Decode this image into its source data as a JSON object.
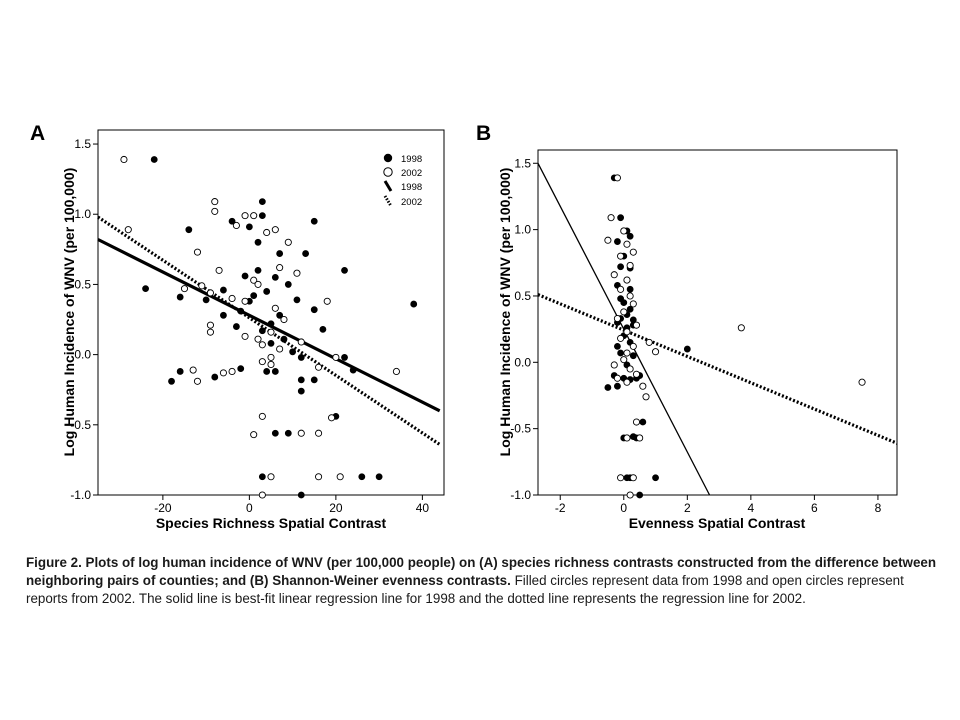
{
  "figure": {
    "caption_bold": "Figure 2. Plots of log human incidence of WNV (per 100,000 people) on (A) species richness contrasts constructed from the difference between neighboring pairs of counties; and (B) Shannon-Weiner evenness contrasts.",
    "caption_rest": " Filled circles represent data from 1998 and open circles represent reports from 2002. The solid line is best-fit linear regression line for 1998 and the dotted line represents the regression line for 2002."
  },
  "chart_data": [
    {
      "panel": "A",
      "type": "scatter",
      "xlabel": "Species Richness Spatial Contrast",
      "ylabel": "Log Human Incidence of WNV (per 100,000)",
      "xlim": [
        -35,
        45
      ],
      "ylim": [
        -1.0,
        1.6
      ],
      "xticks": [
        -20,
        0,
        20,
        40
      ],
      "yticks": [
        -1.0,
        -0.5,
        0.0,
        0.5,
        1.0,
        1.5
      ],
      "ytick_labels": [
        "-1.0",
        "-0.5",
        "0.0",
        "0.5",
        "1.0",
        "1.5"
      ],
      "legend": {
        "position": "top-right",
        "entries": [
          {
            "label": "1998",
            "symbol": "filled-circle"
          },
          {
            "label": "2002",
            "symbol": "open-circle"
          },
          {
            "label": "1998",
            "symbol": "solid-line"
          },
          {
            "label": "2002",
            "symbol": "dotted-line"
          }
        ]
      },
      "lines": [
        {
          "name": "1998",
          "style": "solid",
          "x": [
            -35,
            44
          ],
          "y": [
            0.82,
            -0.4
          ]
        },
        {
          "name": "2002",
          "style": "dotted",
          "x": [
            -35,
            44
          ],
          "y": [
            0.98,
            -0.64
          ]
        }
      ],
      "series": [
        {
          "name": "1998",
          "marker": "filled",
          "points": [
            [
              -22,
              1.39
            ],
            [
              -14,
              0.89
            ],
            [
              -4,
              0.95
            ],
            [
              0,
              0.91
            ],
            [
              3,
              1.09
            ],
            [
              3,
              0.99
            ],
            [
              15,
              0.95
            ],
            [
              13,
              0.72
            ],
            [
              -16,
              0.41
            ],
            [
              -10,
              0.39
            ],
            [
              -24,
              0.47
            ],
            [
              -6,
              0.28
            ],
            [
              -2,
              0.31
            ],
            [
              1,
              0.42
            ],
            [
              4,
              0.45
            ],
            [
              6,
              0.55
            ],
            [
              2,
              0.6
            ],
            [
              9,
              0.5
            ],
            [
              -3,
              0.2
            ],
            [
              5,
              0.22
            ],
            [
              7,
              0.28
            ],
            [
              11,
              0.39
            ],
            [
              15,
              0.32
            ],
            [
              17,
              0.18
            ],
            [
              22,
              0.6
            ],
            [
              5,
              0.08
            ],
            [
              8,
              0.11
            ],
            [
              10,
              0.02
            ],
            [
              12,
              -0.02
            ],
            [
              -18,
              -0.19
            ],
            [
              -16,
              -0.12
            ],
            [
              -8,
              -0.16
            ],
            [
              -2,
              -0.1
            ],
            [
              4,
              -0.12
            ],
            [
              6,
              -0.12
            ],
            [
              12,
              -0.18
            ],
            [
              15,
              -0.18
            ],
            [
              22,
              -0.02
            ],
            [
              24,
              -0.11
            ],
            [
              12,
              -0.26
            ],
            [
              20,
              -0.44
            ],
            [
              38,
              0.36
            ],
            [
              6,
              -0.56
            ],
            [
              9,
              -0.56
            ],
            [
              3,
              -0.87
            ],
            [
              26,
              -0.87
            ],
            [
              30,
              -0.87
            ],
            [
              12,
              -1.0
            ],
            [
              0,
              0.38
            ],
            [
              -6,
              0.46
            ],
            [
              -1,
              0.56
            ],
            [
              2,
              0.8
            ],
            [
              3,
              0.17
            ],
            [
              7,
              0.72
            ]
          ]
        },
        {
          "name": "2002",
          "marker": "open",
          "points": [
            [
              -29,
              1.39
            ],
            [
              -28,
              0.89
            ],
            [
              -8,
              1.09
            ],
            [
              -8,
              1.02
            ],
            [
              -3,
              0.92
            ],
            [
              -1,
              0.99
            ],
            [
              1,
              0.99
            ],
            [
              4,
              0.87
            ],
            [
              6,
              0.89
            ],
            [
              -12,
              0.73
            ],
            [
              -7,
              0.6
            ],
            [
              -11,
              0.49
            ],
            [
              -15,
              0.47
            ],
            [
              -9,
              0.44
            ],
            [
              -4,
              0.4
            ],
            [
              -1,
              0.38
            ],
            [
              1,
              0.53
            ],
            [
              2,
              0.5
            ],
            [
              6,
              0.33
            ],
            [
              7,
              0.62
            ],
            [
              9,
              0.8
            ],
            [
              -9,
              0.21
            ],
            [
              -9,
              0.16
            ],
            [
              -1,
              0.13
            ],
            [
              2,
              0.11
            ],
            [
              5,
              0.16
            ],
            [
              3,
              0.07
            ],
            [
              5,
              -0.02
            ],
            [
              7,
              0.04
            ],
            [
              -13,
              -0.11
            ],
            [
              -12,
              -0.19
            ],
            [
              -6,
              -0.13
            ],
            [
              -4,
              -0.12
            ],
            [
              3,
              -0.05
            ],
            [
              5,
              -0.07
            ],
            [
              20,
              -0.02
            ],
            [
              16,
              -0.09
            ],
            [
              34,
              -0.12
            ],
            [
              8,
              0.25
            ],
            [
              3,
              -0.44
            ],
            [
              1,
              -0.57
            ],
            [
              12,
              -0.56
            ],
            [
              16,
              -0.56
            ],
            [
              19,
              -0.45
            ],
            [
              21,
              -0.87
            ],
            [
              16,
              -0.87
            ],
            [
              5,
              -0.87
            ],
            [
              3,
              -1.0
            ],
            [
              12,
              0.09
            ],
            [
              18,
              0.38
            ],
            [
              11,
              0.58
            ]
          ]
        }
      ]
    },
    {
      "panel": "B",
      "type": "scatter",
      "xlabel": "Evenness Spatial Contrast",
      "ylabel": "Log Human Incidence of WNV (per 100,000)",
      "xlim": [
        -2.7,
        8.6
      ],
      "ylim": [
        -1.0,
        1.6
      ],
      "xticks": [
        -2,
        0,
        2,
        4,
        6,
        8
      ],
      "yticks": [
        -1.0,
        -0.5,
        0.0,
        0.5,
        1.0,
        1.5
      ],
      "ytick_labels": [
        "-1.0",
        "-0.5",
        "0.0",
        "0.5",
        "1.0",
        "1.5"
      ],
      "lines": [
        {
          "name": "1998",
          "style": "solid",
          "x": [
            -2.7,
            2.7
          ],
          "y": [
            1.5,
            -1.0
          ]
        },
        {
          "name": "2002",
          "style": "dotted",
          "x": [
            -2.7,
            8.6
          ],
          "y": [
            0.51,
            -0.61
          ]
        }
      ],
      "series": [
        {
          "name": "1998",
          "marker": "filled",
          "points": [
            [
              -0.3,
              1.39
            ],
            [
              -0.1,
              1.09
            ],
            [
              0.1,
              0.99
            ],
            [
              -0.2,
              0.91
            ],
            [
              0.2,
              0.95
            ],
            [
              0.0,
              0.8
            ],
            [
              -0.1,
              0.72
            ],
            [
              0.1,
              0.62
            ],
            [
              0.2,
              0.55
            ],
            [
              -0.1,
              0.48
            ],
            [
              0.0,
              0.45
            ],
            [
              0.2,
              0.4
            ],
            [
              0.1,
              0.36
            ],
            [
              -0.2,
              0.3
            ],
            [
              0.3,
              0.32
            ],
            [
              0.1,
              0.26
            ],
            [
              0.0,
              0.2
            ],
            [
              -0.2,
              0.12
            ],
            [
              0.2,
              0.15
            ],
            [
              -0.1,
              0.07
            ],
            [
              0.3,
              0.05
            ],
            [
              0.1,
              -0.02
            ],
            [
              -0.3,
              -0.1
            ],
            [
              0.0,
              -0.12
            ],
            [
              0.2,
              -0.13
            ],
            [
              0.4,
              -0.12
            ],
            [
              -0.5,
              -0.19
            ],
            [
              -0.2,
              -0.18
            ],
            [
              0.5,
              -0.1
            ],
            [
              0.3,
              0.28
            ],
            [
              2.0,
              0.1
            ],
            [
              0.6,
              -0.45
            ],
            [
              0.3,
              -0.56
            ],
            [
              0.0,
              -0.57
            ],
            [
              0.4,
              -0.57
            ],
            [
              0.1,
              -0.87
            ],
            [
              0.2,
              -0.87
            ],
            [
              1.0,
              -0.87
            ],
            [
              0.5,
              -1.0
            ],
            [
              -0.1,
              0.33
            ],
            [
              0.2,
              0.71
            ],
            [
              -0.2,
              0.58
            ]
          ]
        },
        {
          "name": "2002",
          "marker": "open",
          "points": [
            [
              -0.2,
              1.39
            ],
            [
              -0.4,
              1.09
            ],
            [
              0.0,
              0.99
            ],
            [
              -0.5,
              0.92
            ],
            [
              0.1,
              0.89
            ],
            [
              -0.1,
              0.8
            ],
            [
              0.2,
              0.73
            ],
            [
              0.1,
              0.62
            ],
            [
              -0.1,
              0.55
            ],
            [
              0.2,
              0.5
            ],
            [
              0.3,
              0.44
            ],
            [
              0.0,
              0.38
            ],
            [
              -0.2,
              0.33
            ],
            [
              0.4,
              0.28
            ],
            [
              0.1,
              0.23
            ],
            [
              -0.1,
              0.18
            ],
            [
              0.3,
              0.12
            ],
            [
              0.1,
              0.07
            ],
            [
              0.0,
              0.02
            ],
            [
              -0.3,
              -0.02
            ],
            [
              0.2,
              -0.05
            ],
            [
              0.4,
              -0.09
            ],
            [
              -0.2,
              -0.12
            ],
            [
              0.1,
              -0.15
            ],
            [
              0.6,
              -0.18
            ],
            [
              0.7,
              -0.26
            ],
            [
              0.4,
              -0.45
            ],
            [
              0.5,
              -0.57
            ],
            [
              0.1,
              -0.57
            ],
            [
              -0.1,
              -0.87
            ],
            [
              0.3,
              -0.87
            ],
            [
              0.2,
              -1.0
            ],
            [
              3.7,
              0.26
            ],
            [
              7.5,
              -0.15
            ],
            [
              0.8,
              0.15
            ],
            [
              1.0,
              0.08
            ],
            [
              -0.3,
              0.66
            ],
            [
              0.3,
              0.83
            ]
          ]
        }
      ]
    }
  ]
}
